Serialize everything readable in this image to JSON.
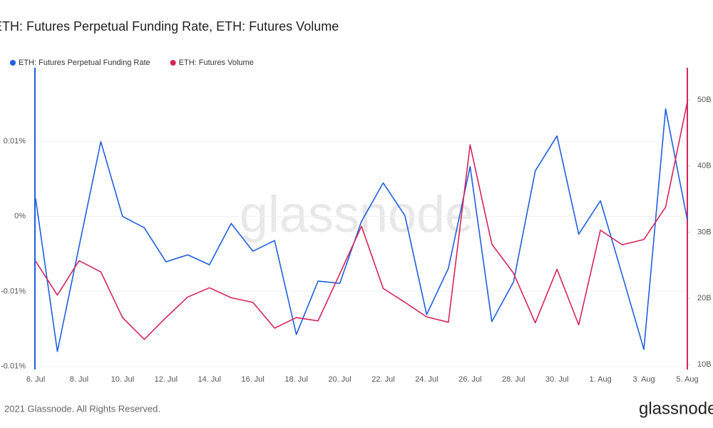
{
  "chart_data": {
    "type": "line",
    "title": "ETH: Futures Perpetual Funding Rate, ETH: Futures Volume",
    "watermark": "glassnode",
    "footer": "2021 Glassnode. All Rights Reserved.",
    "logo": "glassnode",
    "legend": "top-left",
    "grid": true,
    "categories": [
      "6. Jul",
      null,
      "8. Jul",
      null,
      "10. Jul",
      null,
      "12. Jul",
      null,
      "14. Jul",
      null,
      "16. Jul",
      null,
      "18. Jul",
      null,
      "20. Jul",
      null,
      "22. Jul",
      null,
      "24. Jul",
      null,
      "26. Jul",
      null,
      "28. Jul",
      null,
      "30. Jul",
      null,
      "1. Aug",
      null,
      "3. Aug",
      null,
      "5. Aug"
    ],
    "ylim": [
      -0.0102,
      0.0099
    ],
    "yticks": [
      {
        "value": 0.005,
        "label": "0.01%"
      },
      {
        "value": 0,
        "label": "0%"
      },
      {
        "value": -0.005,
        "label": "-0.01%"
      },
      {
        "value": -0.01,
        "label": "-0.01%"
      }
    ],
    "y2lim": [
      9.25,
      54.85
    ],
    "y2ticks": [
      {
        "value": 10,
        "label": "10B"
      },
      {
        "value": 20,
        "label": "20B"
      },
      {
        "value": 30,
        "label": "30B"
      },
      {
        "value": 40,
        "label": "40B"
      },
      {
        "value": 50,
        "label": "50B"
      }
    ],
    "series": [
      {
        "name": "ETH: Futures Perpetual Funding Rate",
        "color": "#1f5fe0",
        "axis": "y",
        "values": [
          0.00118,
          -0.009,
          -0.002,
          0.00498,
          0,
          -0.00076,
          -0.00303,
          -0.00256,
          -0.00322,
          -0.00047,
          -0.00232,
          -0.00161,
          -0.00787,
          -0.00431,
          -0.00446,
          -0.00033,
          0.00223,
          5e-05,
          -0.00654,
          -0.00346,
          0.00332,
          -0.00701,
          -0.00436,
          0.00303,
          0.00536,
          -0.00118,
          0.00104,
          -0.00389,
          -0.00886,
          0.00716,
          -0.00024
        ]
      },
      {
        "name": "ETH: Futures Volume",
        "color": "#d6245a",
        "axis": "y2",
        "values": [
          25.6,
          20.5,
          25.7,
          24.0,
          17.1,
          13.8,
          17.1,
          20.2,
          21.6,
          20.1,
          19.4,
          15.5,
          17.1,
          16.6,
          23.7,
          30.9,
          21.5,
          19.4,
          17.2,
          16.4,
          43.2,
          28.2,
          23.8,
          16.3,
          24.4,
          16.0,
          30.3,
          28.1,
          28.9,
          33.8,
          49.7
        ]
      }
    ]
  }
}
